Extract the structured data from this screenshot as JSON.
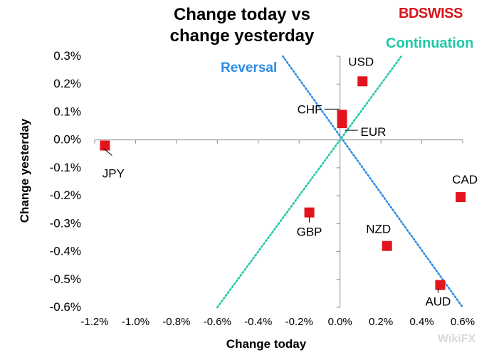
{
  "title_line1": "Change today vs",
  "title_line2": "change yesterday",
  "brand": {
    "bold": "BD",
    "rest": "SWISS",
    "color": "#d7141a"
  },
  "watermark": "WikiFX",
  "chart_data": {
    "type": "scatter",
    "title": "Change today vs change yesterday",
    "xlabel": "Change today",
    "ylabel": "Change yesterday",
    "xlim": [
      -1.2,
      0.6
    ],
    "ylim": [
      -0.6,
      0.3
    ],
    "xticks": [
      -1.2,
      -1.0,
      -0.8,
      -0.6,
      -0.4,
      -0.2,
      0.0,
      0.2,
      0.4,
      0.6
    ],
    "yticks": [
      0.3,
      0.2,
      0.1,
      0.0,
      -0.1,
      -0.2,
      -0.3,
      -0.4,
      -0.5,
      -0.6
    ],
    "xtick_labels": [
      "-1.2%",
      "-1.0%",
      "-0.8%",
      "-0.6%",
      "-0.4%",
      "-0.2%",
      "0.0%",
      "0.2%",
      "0.4%",
      "0.6%"
    ],
    "ytick_labels": [
      "0.3%",
      "0.2%",
      "0.1%",
      "0.0%",
      "-0.1%",
      "-0.2%",
      "-0.3%",
      "-0.4%",
      "-0.5%",
      "-0.6%"
    ],
    "marker_color": "#e3141e",
    "points": [
      {
        "label": "USD",
        "x": 0.11,
        "y": 0.21
      },
      {
        "label": "CHF",
        "x": 0.01,
        "y": 0.09
      },
      {
        "label": "EUR",
        "x": 0.01,
        "y": 0.06
      },
      {
        "label": "JPY",
        "x": -1.15,
        "y": -0.02
      },
      {
        "label": "CAD",
        "x": 0.59,
        "y": -0.205
      },
      {
        "label": "GBP",
        "x": -0.15,
        "y": -0.26
      },
      {
        "label": "NZD",
        "x": 0.23,
        "y": -0.38
      },
      {
        "label": "AUD",
        "x": 0.49,
        "y": -0.52
      }
    ],
    "lines": [
      {
        "name": "Reversal",
        "color": "#2b8be6",
        "from": [
          -0.28,
          0.3
        ],
        "to": [
          0.6,
          -0.6
        ]
      },
      {
        "name": "Continuation",
        "color": "#1ec9a6",
        "from": [
          -0.6,
          -0.6
        ],
        "to": [
          0.3,
          0.3
        ]
      }
    ]
  }
}
